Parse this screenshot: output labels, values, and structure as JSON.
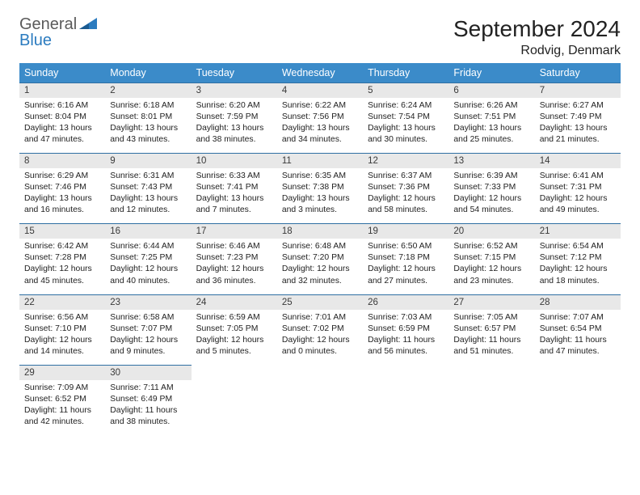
{
  "brand": {
    "part1": "General",
    "part2": "Blue"
  },
  "title": "September 2024",
  "location": "Rodvig, Denmark",
  "colors": {
    "header_bg": "#3b8bc9",
    "header_text": "#ffffff",
    "daynum_bg": "#e8e8e8",
    "daynum_border_top": "#2f6fa3",
    "body_text": "#222222",
    "logo_gray": "#5a5a5a",
    "logo_blue": "#2b7bbf",
    "page_bg": "#ffffff"
  },
  "typography": {
    "title_fontsize": 28,
    "location_fontsize": 16,
    "dayhead_fontsize": 12.5,
    "daynum_fontsize": 11.5,
    "body_fontsize": 10.4,
    "font_family": "Arial"
  },
  "layout": {
    "columns": 7,
    "rows": 5,
    "start_weekday": "Sunday",
    "month_start_index": 0
  },
  "weekdays": [
    "Sunday",
    "Monday",
    "Tuesday",
    "Wednesday",
    "Thursday",
    "Friday",
    "Saturday"
  ],
  "days": [
    {
      "n": "1",
      "sunrise": "Sunrise: 6:16 AM",
      "sunset": "Sunset: 8:04 PM",
      "daylight": "Daylight: 13 hours and 47 minutes."
    },
    {
      "n": "2",
      "sunrise": "Sunrise: 6:18 AM",
      "sunset": "Sunset: 8:01 PM",
      "daylight": "Daylight: 13 hours and 43 minutes."
    },
    {
      "n": "3",
      "sunrise": "Sunrise: 6:20 AM",
      "sunset": "Sunset: 7:59 PM",
      "daylight": "Daylight: 13 hours and 38 minutes."
    },
    {
      "n": "4",
      "sunrise": "Sunrise: 6:22 AM",
      "sunset": "Sunset: 7:56 PM",
      "daylight": "Daylight: 13 hours and 34 minutes."
    },
    {
      "n": "5",
      "sunrise": "Sunrise: 6:24 AM",
      "sunset": "Sunset: 7:54 PM",
      "daylight": "Daylight: 13 hours and 30 minutes."
    },
    {
      "n": "6",
      "sunrise": "Sunrise: 6:26 AM",
      "sunset": "Sunset: 7:51 PM",
      "daylight": "Daylight: 13 hours and 25 minutes."
    },
    {
      "n": "7",
      "sunrise": "Sunrise: 6:27 AM",
      "sunset": "Sunset: 7:49 PM",
      "daylight": "Daylight: 13 hours and 21 minutes."
    },
    {
      "n": "8",
      "sunrise": "Sunrise: 6:29 AM",
      "sunset": "Sunset: 7:46 PM",
      "daylight": "Daylight: 13 hours and 16 minutes."
    },
    {
      "n": "9",
      "sunrise": "Sunrise: 6:31 AM",
      "sunset": "Sunset: 7:43 PM",
      "daylight": "Daylight: 13 hours and 12 minutes."
    },
    {
      "n": "10",
      "sunrise": "Sunrise: 6:33 AM",
      "sunset": "Sunset: 7:41 PM",
      "daylight": "Daylight: 13 hours and 7 minutes."
    },
    {
      "n": "11",
      "sunrise": "Sunrise: 6:35 AM",
      "sunset": "Sunset: 7:38 PM",
      "daylight": "Daylight: 13 hours and 3 minutes."
    },
    {
      "n": "12",
      "sunrise": "Sunrise: 6:37 AM",
      "sunset": "Sunset: 7:36 PM",
      "daylight": "Daylight: 12 hours and 58 minutes."
    },
    {
      "n": "13",
      "sunrise": "Sunrise: 6:39 AM",
      "sunset": "Sunset: 7:33 PM",
      "daylight": "Daylight: 12 hours and 54 minutes."
    },
    {
      "n": "14",
      "sunrise": "Sunrise: 6:41 AM",
      "sunset": "Sunset: 7:31 PM",
      "daylight": "Daylight: 12 hours and 49 minutes."
    },
    {
      "n": "15",
      "sunrise": "Sunrise: 6:42 AM",
      "sunset": "Sunset: 7:28 PM",
      "daylight": "Daylight: 12 hours and 45 minutes."
    },
    {
      "n": "16",
      "sunrise": "Sunrise: 6:44 AM",
      "sunset": "Sunset: 7:25 PM",
      "daylight": "Daylight: 12 hours and 40 minutes."
    },
    {
      "n": "17",
      "sunrise": "Sunrise: 6:46 AM",
      "sunset": "Sunset: 7:23 PM",
      "daylight": "Daylight: 12 hours and 36 minutes."
    },
    {
      "n": "18",
      "sunrise": "Sunrise: 6:48 AM",
      "sunset": "Sunset: 7:20 PM",
      "daylight": "Daylight: 12 hours and 32 minutes."
    },
    {
      "n": "19",
      "sunrise": "Sunrise: 6:50 AM",
      "sunset": "Sunset: 7:18 PM",
      "daylight": "Daylight: 12 hours and 27 minutes."
    },
    {
      "n": "20",
      "sunrise": "Sunrise: 6:52 AM",
      "sunset": "Sunset: 7:15 PM",
      "daylight": "Daylight: 12 hours and 23 minutes."
    },
    {
      "n": "21",
      "sunrise": "Sunrise: 6:54 AM",
      "sunset": "Sunset: 7:12 PM",
      "daylight": "Daylight: 12 hours and 18 minutes."
    },
    {
      "n": "22",
      "sunrise": "Sunrise: 6:56 AM",
      "sunset": "Sunset: 7:10 PM",
      "daylight": "Daylight: 12 hours and 14 minutes."
    },
    {
      "n": "23",
      "sunrise": "Sunrise: 6:58 AM",
      "sunset": "Sunset: 7:07 PM",
      "daylight": "Daylight: 12 hours and 9 minutes."
    },
    {
      "n": "24",
      "sunrise": "Sunrise: 6:59 AM",
      "sunset": "Sunset: 7:05 PM",
      "daylight": "Daylight: 12 hours and 5 minutes."
    },
    {
      "n": "25",
      "sunrise": "Sunrise: 7:01 AM",
      "sunset": "Sunset: 7:02 PM",
      "daylight": "Daylight: 12 hours and 0 minutes."
    },
    {
      "n": "26",
      "sunrise": "Sunrise: 7:03 AM",
      "sunset": "Sunset: 6:59 PM",
      "daylight": "Daylight: 11 hours and 56 minutes."
    },
    {
      "n": "27",
      "sunrise": "Sunrise: 7:05 AM",
      "sunset": "Sunset: 6:57 PM",
      "daylight": "Daylight: 11 hours and 51 minutes."
    },
    {
      "n": "28",
      "sunrise": "Sunrise: 7:07 AM",
      "sunset": "Sunset: 6:54 PM",
      "daylight": "Daylight: 11 hours and 47 minutes."
    },
    {
      "n": "29",
      "sunrise": "Sunrise: 7:09 AM",
      "sunset": "Sunset: 6:52 PM",
      "daylight": "Daylight: 11 hours and 42 minutes."
    },
    {
      "n": "30",
      "sunrise": "Sunrise: 7:11 AM",
      "sunset": "Sunset: 6:49 PM",
      "daylight": "Daylight: 11 hours and 38 minutes."
    }
  ]
}
